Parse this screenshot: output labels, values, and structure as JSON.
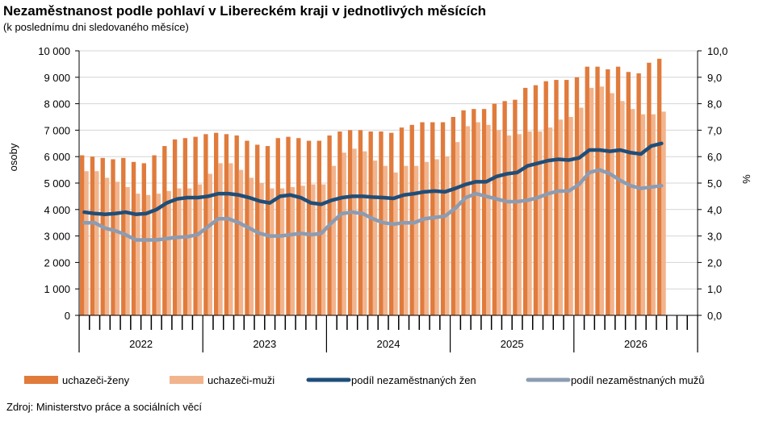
{
  "chart_data": {
    "type": "bar+line",
    "title": "Nezaměstnanost podle pohlaví v Libereckém kraji v jednotlivých měsících",
    "subtitle": "(k poslednímu dni sledovaného měsíce)",
    "ylabel_left": "osoby",
    "ylabel_right": "%",
    "ylim_left": [
      0,
      10000
    ],
    "ylim_right": [
      0,
      10
    ],
    "yticks_left": [
      "0",
      "1 000",
      "2 000",
      "3 000",
      "4 000",
      "5 000",
      "6 000",
      "7 000",
      "8 000",
      "9 000",
      "10 000"
    ],
    "yticks_right": [
      "0,0",
      "1,0",
      "2,0",
      "3,0",
      "4,0",
      "5,0",
      "6,0",
      "7,0",
      "8,0",
      "9,0",
      "10,0"
    ],
    "years": [
      "2022",
      "2023",
      "2024",
      "2025",
      "2026"
    ],
    "months_per_year": 12,
    "grid": true,
    "legend_position": "bottom",
    "series": [
      {
        "name": "uchazeči-ženy",
        "kind": "bar",
        "color": "#E07B3C",
        "values": [
          6050,
          6000,
          5950,
          5900,
          5950,
          5800,
          5750,
          6050,
          6400,
          6650,
          6700,
          6750,
          6850,
          6900,
          6850,
          6800,
          6600,
          6450,
          6400,
          6700,
          6750,
          6700,
          6600,
          6600,
          6800,
          6950,
          7000,
          7000,
          6950,
          6950,
          6900,
          7100,
          7200,
          7300,
          7300,
          7300,
          7500,
          7750,
          7800,
          7800,
          8000,
          8100,
          8150,
          8600,
          8700,
          8850,
          8900,
          8900,
          9000,
          9400,
          9400,
          9300,
          9400,
          9200,
          9150,
          9550,
          9700
        ]
      },
      {
        "name": "uchazeči-muži",
        "kind": "bar",
        "color": "#F2B48D",
        "values": [
          5450,
          5450,
          5200,
          5050,
          4850,
          4600,
          4550,
          4600,
          4700,
          4800,
          4800,
          4950,
          5350,
          5750,
          5750,
          5500,
          5200,
          5000,
          4800,
          4800,
          4850,
          4900,
          4950,
          4950,
          5650,
          6150,
          6300,
          6200,
          5850,
          5650,
          5400,
          5650,
          5650,
          5800,
          5900,
          6000,
          6550,
          7150,
          7300,
          7200,
          7000,
          6800,
          6850,
          6950,
          6950,
          7100,
          7400,
          7500,
          7850,
          8600,
          8650,
          8400,
          8100,
          7800,
          7600,
          7600,
          7700
        ]
      },
      {
        "name": "podíl nezaměstnaných žen",
        "kind": "line",
        "axis": "right",
        "color": "#1F4E79",
        "values": [
          3.9,
          3.85,
          3.82,
          3.85,
          3.9,
          3.82,
          3.85,
          4.0,
          4.25,
          4.4,
          4.45,
          4.45,
          4.5,
          4.6,
          4.6,
          4.55,
          4.45,
          4.32,
          4.25,
          4.5,
          4.55,
          4.45,
          4.25,
          4.2,
          4.35,
          4.45,
          4.5,
          4.5,
          4.47,
          4.45,
          4.42,
          4.55,
          4.6,
          4.67,
          4.7,
          4.67,
          4.8,
          4.95,
          5.05,
          5.05,
          5.25,
          5.35,
          5.4,
          5.65,
          5.75,
          5.85,
          5.9,
          5.87,
          5.95,
          6.25,
          6.25,
          6.2,
          6.25,
          6.15,
          6.1,
          6.4,
          6.5
        ]
      },
      {
        "name": "podíl nezaměstnaných mužů",
        "kind": "line",
        "axis": "right",
        "color": "#8C9CB2",
        "values": [
          3.5,
          3.5,
          3.3,
          3.2,
          3.05,
          2.85,
          2.85,
          2.85,
          2.9,
          2.95,
          2.97,
          3.05,
          3.35,
          3.65,
          3.65,
          3.5,
          3.3,
          3.1,
          3.0,
          3.0,
          3.05,
          3.1,
          3.05,
          3.1,
          3.5,
          3.85,
          3.9,
          3.85,
          3.65,
          3.5,
          3.45,
          3.5,
          3.5,
          3.65,
          3.7,
          3.75,
          4.05,
          4.45,
          4.6,
          4.5,
          4.4,
          4.3,
          4.3,
          4.35,
          4.45,
          4.6,
          4.7,
          4.7,
          4.95,
          5.4,
          5.5,
          5.35,
          5.1,
          4.9,
          4.8,
          4.85,
          4.9
        ]
      }
    ],
    "source": "Zdroj: Ministerstvo práce a sociálních věcí"
  }
}
